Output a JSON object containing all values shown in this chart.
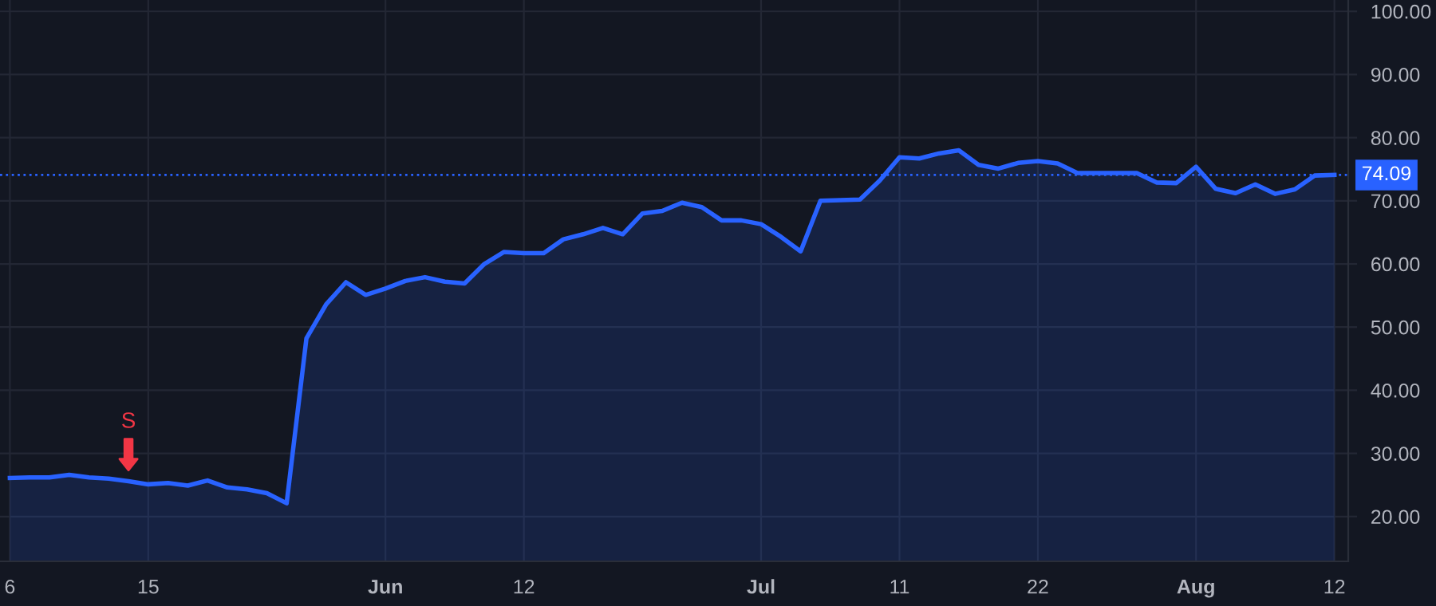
{
  "chart_data": {
    "type": "area",
    "categories": [
      "6",
      null,
      null,
      null,
      null,
      null,
      null,
      "15",
      null,
      null,
      null,
      null,
      null,
      null,
      null,
      null,
      null,
      null,
      null,
      "Jun",
      null,
      null,
      null,
      null,
      null,
      null,
      "12",
      null,
      null,
      null,
      null,
      null,
      null,
      null,
      null,
      null,
      null,
      null,
      "Jul",
      null,
      null,
      null,
      null,
      null,
      null,
      "11",
      null,
      null,
      null,
      null,
      null,
      null,
      "22",
      null,
      null,
      null,
      null,
      null,
      null,
      null,
      "Aug",
      null,
      null,
      null,
      null,
      null,
      null,
      "12"
    ],
    "series": [
      {
        "color": "#2962ff",
        "values": [
          26.1,
          26.2,
          26.2,
          26.6,
          26.2,
          26.0,
          25.6,
          25.1,
          25.3,
          24.9,
          25.7,
          24.6,
          24.3,
          23.7,
          22.1,
          48.2,
          53.6,
          57.1,
          55.1,
          56.1,
          57.3,
          57.9,
          57.2,
          56.9,
          60.0,
          61.9,
          61.7,
          61.7,
          63.9,
          64.7,
          65.7,
          64.7,
          68.0,
          68.4,
          69.7,
          69.0,
          66.9,
          66.9,
          66.3,
          64.3,
          62.0,
          70.0,
          70.1,
          70.2,
          73.2,
          76.9,
          76.7,
          77.5,
          78.0,
          75.7,
          75.1,
          76.0,
          76.3,
          75.9,
          74.4,
          74.4,
          74.4,
          74.4,
          72.9,
          72.8,
          75.4,
          71.9,
          71.2,
          72.6,
          71.1,
          71.8,
          74.0,
          74.1
        ]
      }
    ],
    "ylim": [
      12.9,
      101.8
    ],
    "yticks": [
      {
        "value": 20,
        "label": "20.00"
      },
      {
        "value": 30,
        "label": "30.00"
      },
      {
        "value": 40,
        "label": "40.00"
      },
      {
        "value": 50,
        "label": "50.00"
      },
      {
        "value": 60,
        "label": "60.00"
      },
      {
        "value": 70,
        "label": "70.00"
      },
      {
        "value": 80,
        "label": "80.00"
      },
      {
        "value": 90,
        "label": "90.00"
      },
      {
        "value": 100,
        "label": "100.00"
      }
    ],
    "ref_lines": [
      {
        "axis": "y",
        "value": 74.09,
        "label": "74.09",
        "color": "#2962ff",
        "line_style": "dotted"
      }
    ],
    "annotations": [
      {
        "text": "S",
        "y": 25.6
      }
    ],
    "grid": true,
    "legend": false
  }
}
